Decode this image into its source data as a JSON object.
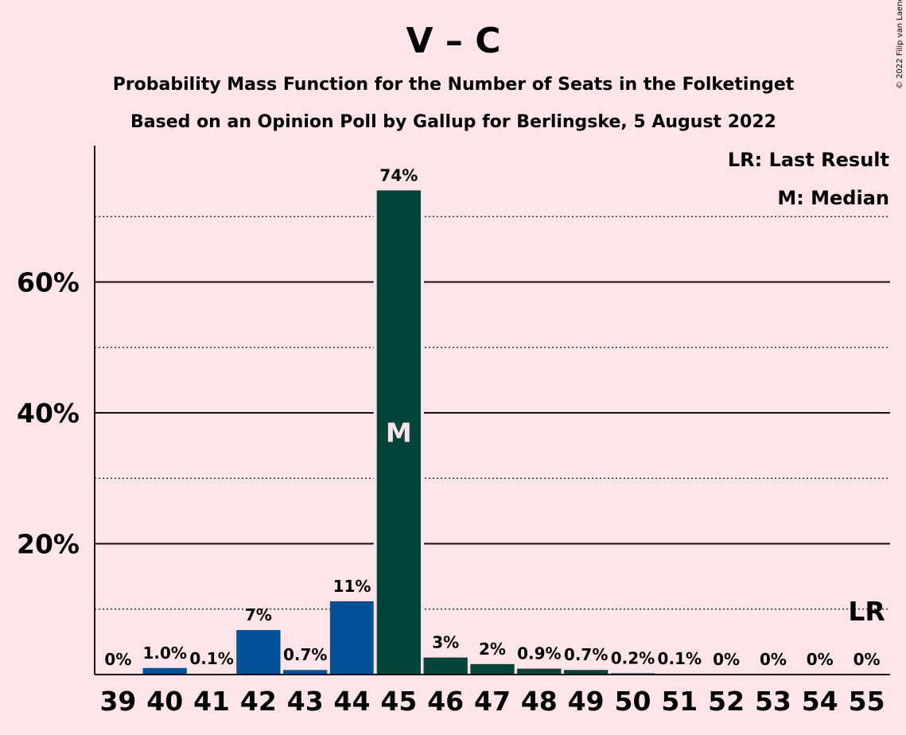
{
  "chart_data": {
    "type": "bar",
    "title": "V – C",
    "subtitle1": "Probability Mass Function for the Number of Seats in the Folketinget",
    "subtitle2": "Based on an Opinion Poll by Gallup for Berlingske, 5 August 2022",
    "copyright": "© 2022 Filip van Laenen",
    "categories": [
      "39",
      "40",
      "41",
      "42",
      "43",
      "44",
      "45",
      "46",
      "47",
      "48",
      "49",
      "50",
      "51",
      "52",
      "53",
      "54",
      "55"
    ],
    "values": [
      0,
      1.0,
      0.1,
      6.8,
      0.7,
      11.2,
      74.0,
      2.6,
      1.6,
      0.9,
      0.7,
      0.2,
      0.1,
      0,
      0,
      0,
      0
    ],
    "labels": [
      "0%",
      "1.0%",
      "0.1%",
      "7%",
      "0.7%",
      "11%",
      "74%",
      "3%",
      "2%",
      "0.9%",
      "0.7%",
      "0.2%",
      "0.1%",
      "0%",
      "0%",
      "0%",
      "0%"
    ],
    "ylim": [
      0,
      80
    ],
    "yticks": [
      20,
      40,
      60
    ],
    "ytick_labels": [
      "20%",
      "40%",
      "60%"
    ],
    "grid": "solid lines every 20%, dotted lines at the 10% midpoints",
    "median_category": "45",
    "median_marker": "M",
    "last_result_category": "55",
    "last_result_marker": "LR",
    "legend_lines": [
      "LR: Last Result",
      "M: Median"
    ],
    "colors": {
      "background": "#ffe5e9",
      "bar_blue": "#005197",
      "bar_green": "#03453a",
      "text": "#1a0b0e",
      "median_text": "#ffe5e9"
    }
  }
}
